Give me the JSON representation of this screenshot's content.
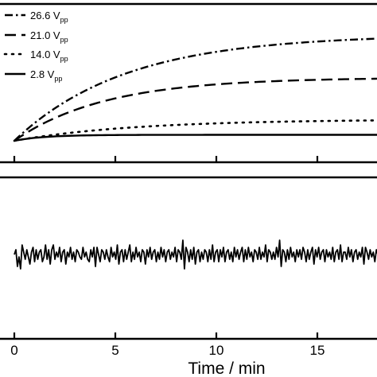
{
  "chart_data": [
    {
      "type": "line",
      "panel": "top",
      "xlim": [
        -0.5,
        18.0
      ],
      "ylim": [
        0,
        1.0
      ],
      "grid": false,
      "legend_position": "top-left",
      "series": [
        {
          "name": "26.6",
          "sub": "pp",
          "unit": "V",
          "style": "dash-dot",
          "x_start": 0,
          "x_end": 18,
          "y_start": 0.0,
          "amplitude": 0.89,
          "tau": 5.5
        },
        {
          "name": "21.0",
          "sub": "pp",
          "unit": "V",
          "style": "dash",
          "x_start": 0,
          "x_end": 18,
          "y_start": 0.0,
          "amplitude": 0.53,
          "tau": 4.5
        },
        {
          "name": "14.0",
          "sub": "pp",
          "unit": "V",
          "style": "dot",
          "x_start": 0,
          "x_end": 18,
          "y_start": 0.0,
          "amplitude": 0.18,
          "tau": 6.0
        },
        {
          "name": "2.8",
          "sub": "pp",
          "unit": "V",
          "style": "solid",
          "x_start": 0,
          "x_end": 18,
          "y_start": 0.0,
          "amplitude": 0.05,
          "tau": 1.5
        }
      ]
    },
    {
      "type": "line",
      "panel": "bottom",
      "xlabel": "Time / min",
      "x_ticks": [
        0,
        5,
        10,
        15
      ],
      "x_tick_labels": [
        "0",
        "5",
        "10",
        "15"
      ],
      "xlim": [
        -0.5,
        18.0
      ],
      "ylim": [
        -1.0,
        1.0
      ],
      "grid": false,
      "series": [
        {
          "style": "solid",
          "x_start": 0,
          "x_end": 18,
          "y": [
            0.0,
            0.2,
            -0.5,
            -0.1,
            -0.6,
            0.4,
            0.1,
            -0.2,
            0.2,
            -0.1,
            -0.4,
            0.1,
            0.3,
            -0.3,
            0.2,
            -0.2,
            0.1,
            0.2,
            -0.3,
            -0.1,
            0.4,
            -0.2,
            0.2,
            -0.4,
            0.2,
            0.4,
            -0.2,
            0.1,
            -0.1,
            0.3,
            -0.3,
            0.1,
            0.2,
            -0.4,
            0.1,
            -0.1,
            0.3,
            -0.2,
            0.1,
            -0.3,
            0.2,
            0.1,
            -0.1,
            -0.2,
            0.3,
            -0.1,
            0.1,
            -0.2,
            -0.3,
            0.2,
            -0.1,
            0.3,
            -0.5,
            0.3,
            0.0,
            -0.3,
            0.2,
            0.1,
            -0.2,
            0.2,
            -0.1,
            -0.3,
            0.3,
            -0.1,
            0.1,
            -0.2,
            0.4,
            -0.4,
            0.1,
            0.2,
            -0.3,
            0.2,
            -0.2,
            0.1,
            0.4,
            -0.3,
            0.1,
            -0.2,
            0.3,
            -0.1,
            0.1,
            -0.3,
            0.2,
            0.1,
            -0.4,
            0.2,
            -0.1,
            0.3,
            -0.2,
            0.1,
            0.2,
            -0.3,
            0.1,
            -0.2,
            0.3,
            -0.1,
            0.2,
            -0.3,
            0.1,
            0.2,
            -0.2,
            0.1,
            -0.1,
            0.3,
            -0.3,
            0.2,
            0.1,
            -0.2,
            0.6,
            -0.6,
            0.3,
            0.1,
            -0.3,
            0.2,
            -0.2,
            0.3,
            -0.4,
            0.1,
            0.2,
            -0.3,
            0.1,
            -0.2,
            0.2,
            0.1,
            -0.3,
            0.2,
            -0.2,
            0.4,
            -0.3,
            0.1,
            0.2,
            -0.3,
            0.2,
            -0.1,
            0.3,
            -0.3,
            0.1,
            0.2,
            -0.2,
            0.1,
            -0.3,
            0.3,
            -0.1,
            0.2,
            -0.2,
            0.1,
            0.3,
            -0.3,
            0.2,
            -0.2,
            0.3,
            -0.1,
            0.1,
            -0.3,
            0.2,
            0.1,
            -0.2,
            0.3,
            -0.2,
            0.1,
            -0.1,
            0.4,
            -0.3,
            0.2,
            0.1,
            -0.2,
            0.1,
            -0.2,
            0.3,
            -0.1,
            0.6,
            -0.5,
            0.2,
            0.1,
            -0.3,
            0.2,
            -0.2,
            0.3,
            -0.1,
            0.1,
            -0.3,
            0.2,
            -0.1,
            0.2,
            -0.2,
            0.3,
            0.1,
            -0.3,
            0.2,
            -0.2,
            0.1,
            0.3,
            -0.4,
            0.2,
            -0.1,
            0.3,
            -0.2,
            0.1,
            0.2,
            -0.3,
            0.2,
            -0.1,
            0.1,
            -0.2,
            0.3,
            -0.3,
            0.1,
            0.2,
            -0.2,
            0.4,
            -0.3,
            0.1,
            0.1,
            -0.2,
            0.3,
            -0.1,
            0.2,
            -0.3,
            0.1,
            0.2,
            -0.2,
            0.1,
            -0.1,
            0.3,
            -0.4,
            0.3,
            0.1,
            -0.2,
            0.2,
            -0.1,
            0.1,
            -0.3,
            0.2,
            0.0
          ]
        }
      ]
    }
  ]
}
